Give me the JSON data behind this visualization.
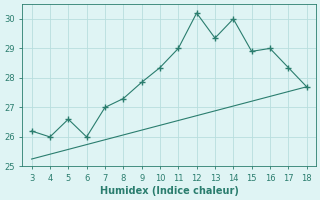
{
  "xlabel": "Humidex (Indice chaleur)",
  "x_data": [
    3,
    4,
    5,
    6,
    7,
    8,
    9,
    10,
    11,
    12,
    13,
    14,
    15,
    16,
    17,
    18
  ],
  "y_data": [
    26.2,
    26.0,
    26.6,
    26.0,
    27.0,
    27.3,
    27.85,
    28.35,
    29.0,
    30.2,
    29.35,
    30.0,
    28.9,
    29.0,
    28.35,
    27.7
  ],
  "trend_x": [
    3,
    18
  ],
  "trend_y": [
    25.25,
    27.7
  ],
  "line_color": "#2a7d6e",
  "marker": "+",
  "marker_size": 5,
  "marker_lw": 1.0,
  "xlim": [
    2.5,
    18.5
  ],
  "ylim": [
    25.0,
    30.5
  ],
  "yticks": [
    25,
    26,
    27,
    28,
    29,
    30
  ],
  "xticks": [
    3,
    4,
    5,
    6,
    7,
    8,
    9,
    10,
    11,
    12,
    13,
    14,
    15,
    16,
    17,
    18
  ],
  "bg_color": "#dff4f4",
  "grid_color": "#b8dede",
  "font_color": "#2a7d6e",
  "label_fontsize": 7,
  "tick_fontsize": 6
}
